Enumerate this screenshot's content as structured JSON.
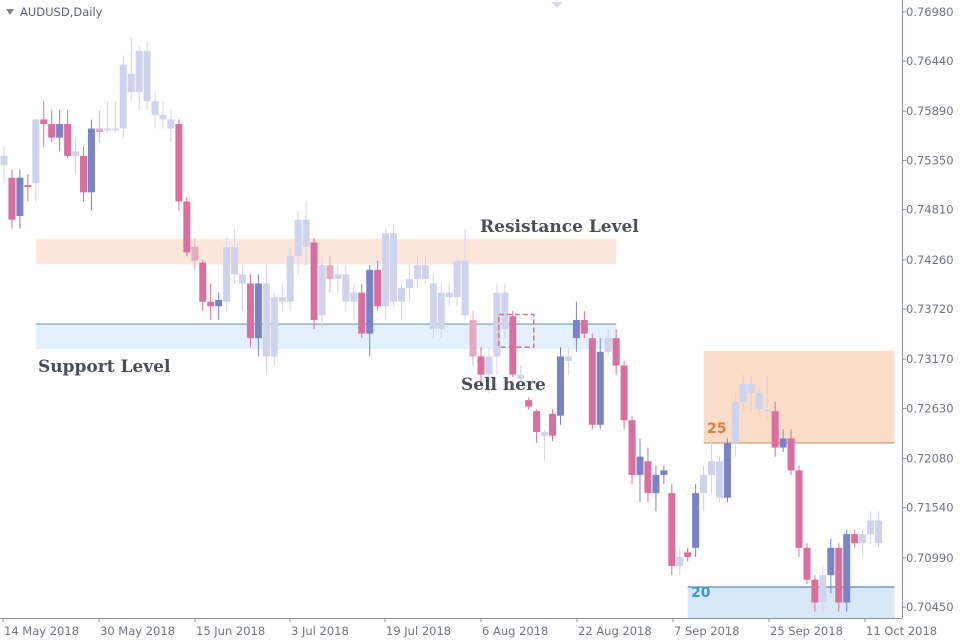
{
  "symbol_label": "AUDUSD,Daily",
  "colors": {
    "bull_muted": "#cfd3ec",
    "bull_strong": "#7b83c6",
    "bear_muted": "#e5a9c2",
    "bear_strong": "#d86f9e",
    "resistance_zone": "#fde7dc",
    "support_zone": "#e4f0fc",
    "support_line": "#8cb3d6",
    "upper_zone": "#fbdcc8",
    "upper_line": "#d28a5c",
    "lower_zone": "#d8e8f8",
    "lower_line": "#3b6fa0",
    "label_25": "#e07b3a",
    "label_20": "#3e96d3",
    "sell_box": "#e0707a"
  },
  "annotations": {
    "resistance": "Resistance Level",
    "support": "Support Level",
    "sell": "Sell here",
    "upper_level": "25",
    "lower_level": "20"
  },
  "chart_data": {
    "type": "candlestick",
    "title": "AUDUSD,Daily",
    "y_ticks": [
      "0.76980",
      "0.76440",
      "0.75890",
      "0.75350",
      "0.74810",
      "0.74260",
      "0.73720",
      "0.73170",
      "0.72630",
      "0.72080",
      "0.71540",
      "0.70990",
      "0.70450"
    ],
    "x_ticks": [
      "14 May 2018",
      "30 May 2018",
      "15 Jun 2018",
      "3 Jul 2018",
      "19 Jul 2018",
      "6 Aug 2018",
      "22 Aug 2018",
      "7 Sep 2018",
      "25 Sep 2018",
      "11 Oct 2018"
    ],
    "ylim": [
      0.7033,
      0.7711
    ],
    "zones": [
      {
        "name": "resistance",
        "from": 0.7421,
        "to": 0.7449,
        "start_index": 4,
        "end_index": 77
      },
      {
        "name": "support",
        "from": 0.7328,
        "to": 0.7356,
        "start_index": 4,
        "end_index": 77
      },
      {
        "name": "upper",
        "from": 0.7225,
        "to": 0.7326,
        "start_index": 88,
        "end_index": 112,
        "line": 0.7225
      },
      {
        "name": "lower",
        "from": 0.7033,
        "to": 0.7067,
        "start_index": 86,
        "end_index": 112,
        "line": 0.7067
      }
    ],
    "sell_marker": {
      "index": 64,
      "from": 0.733,
      "to": 0.7366
    },
    "candles": [
      {
        "o": 0.754,
        "h": 0.755,
        "l": 0.751,
        "c": 0.753,
        "t": "bull_muted"
      },
      {
        "o": 0.7516,
        "h": 0.7525,
        "l": 0.746,
        "c": 0.747,
        "t": "bear_strong"
      },
      {
        "o": 0.7474,
        "h": 0.7525,
        "l": 0.746,
        "c": 0.7516,
        "t": "bull_strong"
      },
      {
        "o": 0.7508,
        "h": 0.752,
        "l": 0.749,
        "c": 0.7506,
        "t": "bear_strong"
      },
      {
        "o": 0.751,
        "h": 0.758,
        "l": 0.749,
        "c": 0.758,
        "t": "bull_muted"
      },
      {
        "o": 0.758,
        "h": 0.76,
        "l": 0.755,
        "c": 0.7575,
        "t": "bear_strong"
      },
      {
        "o": 0.7575,
        "h": 0.759,
        "l": 0.7555,
        "c": 0.756,
        "t": "bear_strong"
      },
      {
        "o": 0.756,
        "h": 0.759,
        "l": 0.7545,
        "c": 0.7575,
        "t": "bull_strong"
      },
      {
        "o": 0.7575,
        "h": 0.759,
        "l": 0.7538,
        "c": 0.754,
        "t": "bear_strong"
      },
      {
        "o": 0.754,
        "h": 0.756,
        "l": 0.752,
        "c": 0.7545,
        "t": "bull_muted"
      },
      {
        "o": 0.754,
        "h": 0.755,
        "l": 0.749,
        "c": 0.75,
        "t": "bear_strong"
      },
      {
        "o": 0.75,
        "h": 0.758,
        "l": 0.748,
        "c": 0.757,
        "t": "bull_strong"
      },
      {
        "o": 0.7566,
        "h": 0.759,
        "l": 0.7555,
        "c": 0.757,
        "t": "bear_muted"
      },
      {
        "o": 0.757,
        "h": 0.76,
        "l": 0.7565,
        "c": 0.757,
        "t": "bull_muted"
      },
      {
        "o": 0.757,
        "h": 0.76,
        "l": 0.7565,
        "c": 0.757,
        "t": "bull_muted"
      },
      {
        "o": 0.757,
        "h": 0.765,
        "l": 0.756,
        "c": 0.764,
        "t": "bull_muted"
      },
      {
        "o": 0.763,
        "h": 0.767,
        "l": 0.76,
        "c": 0.761,
        "t": "bull_muted"
      },
      {
        "o": 0.761,
        "h": 0.766,
        "l": 0.759,
        "c": 0.7655,
        "t": "bull_muted"
      },
      {
        "o": 0.7655,
        "h": 0.7665,
        "l": 0.759,
        "c": 0.76,
        "t": "bull_muted"
      },
      {
        "o": 0.76,
        "h": 0.761,
        "l": 0.757,
        "c": 0.7585,
        "t": "bull_muted"
      },
      {
        "o": 0.7585,
        "h": 0.76,
        "l": 0.757,
        "c": 0.758,
        "t": "bull_muted"
      },
      {
        "o": 0.758,
        "h": 0.759,
        "l": 0.7555,
        "c": 0.757,
        "t": "bull_muted"
      },
      {
        "o": 0.7575,
        "h": 0.758,
        "l": 0.748,
        "c": 0.749,
        "t": "bear_strong"
      },
      {
        "o": 0.749,
        "h": 0.7495,
        "l": 0.743,
        "c": 0.7434,
        "t": "bear_strong"
      },
      {
        "o": 0.744,
        "h": 0.745,
        "l": 0.7415,
        "c": 0.7425,
        "t": "bear_muted"
      },
      {
        "o": 0.7423,
        "h": 0.7426,
        "l": 0.737,
        "c": 0.738,
        "t": "bear_strong"
      },
      {
        "o": 0.738,
        "h": 0.74,
        "l": 0.736,
        "c": 0.7375,
        "t": "bear_strong"
      },
      {
        "o": 0.7375,
        "h": 0.739,
        "l": 0.736,
        "c": 0.7382,
        "t": "bull_strong"
      },
      {
        "o": 0.738,
        "h": 0.745,
        "l": 0.737,
        "c": 0.744,
        "t": "bull_muted"
      },
      {
        "o": 0.744,
        "h": 0.746,
        "l": 0.74,
        "c": 0.741,
        "t": "bull_muted"
      },
      {
        "o": 0.741,
        "h": 0.742,
        "l": 0.737,
        "c": 0.74,
        "t": "bull_muted"
      },
      {
        "o": 0.74,
        "h": 0.741,
        "l": 0.733,
        "c": 0.734,
        "t": "bear_strong"
      },
      {
        "o": 0.734,
        "h": 0.741,
        "l": 0.732,
        "c": 0.74,
        "t": "bull_strong"
      },
      {
        "o": 0.74,
        "h": 0.742,
        "l": 0.73,
        "c": 0.732,
        "t": "bull_muted"
      },
      {
        "o": 0.732,
        "h": 0.739,
        "l": 0.731,
        "c": 0.7385,
        "t": "bull_muted"
      },
      {
        "o": 0.7385,
        "h": 0.74,
        "l": 0.737,
        "c": 0.738,
        "t": "bull_muted"
      },
      {
        "o": 0.738,
        "h": 0.744,
        "l": 0.737,
        "c": 0.743,
        "t": "bull_muted"
      },
      {
        "o": 0.743,
        "h": 0.748,
        "l": 0.741,
        "c": 0.747,
        "t": "bull_muted"
      },
      {
        "o": 0.747,
        "h": 0.749,
        "l": 0.742,
        "c": 0.744,
        "t": "bull_muted"
      },
      {
        "o": 0.7445,
        "h": 0.745,
        "l": 0.735,
        "c": 0.736,
        "t": "bear_strong"
      },
      {
        "o": 0.7365,
        "h": 0.743,
        "l": 0.735,
        "c": 0.742,
        "t": "bull_muted"
      },
      {
        "o": 0.742,
        "h": 0.743,
        "l": 0.739,
        "c": 0.7405,
        "t": "bear_muted"
      },
      {
        "o": 0.7405,
        "h": 0.742,
        "l": 0.739,
        "c": 0.741,
        "t": "bull_muted"
      },
      {
        "o": 0.741,
        "h": 0.742,
        "l": 0.737,
        "c": 0.738,
        "t": "bull_muted"
      },
      {
        "o": 0.738,
        "h": 0.74,
        "l": 0.736,
        "c": 0.739,
        "t": "bull_muted"
      },
      {
        "o": 0.739,
        "h": 0.74,
        "l": 0.734,
        "c": 0.7345,
        "t": "bear_strong"
      },
      {
        "o": 0.7345,
        "h": 0.742,
        "l": 0.732,
        "c": 0.7415,
        "t": "bull_strong"
      },
      {
        "o": 0.7415,
        "h": 0.7425,
        "l": 0.737,
        "c": 0.7375,
        "t": "bear_strong"
      },
      {
        "o": 0.7375,
        "h": 0.746,
        "l": 0.736,
        "c": 0.7455,
        "t": "bull_muted"
      },
      {
        "o": 0.7455,
        "h": 0.7465,
        "l": 0.7375,
        "c": 0.738,
        "t": "bull_muted"
      },
      {
        "o": 0.738,
        "h": 0.74,
        "l": 0.736,
        "c": 0.7395,
        "t": "bull_muted"
      },
      {
        "o": 0.7395,
        "h": 0.742,
        "l": 0.738,
        "c": 0.7405,
        "t": "bull_muted"
      },
      {
        "o": 0.7405,
        "h": 0.743,
        "l": 0.7395,
        "c": 0.742,
        "t": "bull_muted"
      },
      {
        "o": 0.742,
        "h": 0.743,
        "l": 0.74,
        "c": 0.7405,
        "t": "bull_muted"
      },
      {
        "o": 0.74,
        "h": 0.741,
        "l": 0.734,
        "c": 0.735,
        "t": "bull_muted"
      },
      {
        "o": 0.735,
        "h": 0.74,
        "l": 0.734,
        "c": 0.739,
        "t": "bull_muted"
      },
      {
        "o": 0.739,
        "h": 0.74,
        "l": 0.7375,
        "c": 0.7385,
        "t": "bull_muted"
      },
      {
        "o": 0.7385,
        "h": 0.743,
        "l": 0.7375,
        "c": 0.7425,
        "t": "bull_muted"
      },
      {
        "o": 0.7425,
        "h": 0.746,
        "l": 0.736,
        "c": 0.7365,
        "t": "bull_muted"
      },
      {
        "o": 0.736,
        "h": 0.737,
        "l": 0.731,
        "c": 0.732,
        "t": "bear_muted"
      },
      {
        "o": 0.732,
        "h": 0.733,
        "l": 0.729,
        "c": 0.73,
        "t": "bear_strong"
      },
      {
        "o": 0.73,
        "h": 0.733,
        "l": 0.728,
        "c": 0.732,
        "t": "bull_muted"
      },
      {
        "o": 0.732,
        "h": 0.74,
        "l": 0.73,
        "c": 0.739,
        "t": "bull_muted"
      },
      {
        "o": 0.739,
        "h": 0.74,
        "l": 0.734,
        "c": 0.735,
        "t": "bull_muted"
      },
      {
        "o": 0.7364,
        "h": 0.737,
        "l": 0.7297,
        "c": 0.73,
        "t": "bear_strong"
      },
      {
        "o": 0.73,
        "h": 0.731,
        "l": 0.729,
        "c": 0.7295,
        "t": "bull_muted"
      },
      {
        "o": 0.7272,
        "h": 0.7275,
        "l": 0.7262,
        "c": 0.7265,
        "t": "bear_strong"
      },
      {
        "o": 0.726,
        "h": 0.7262,
        "l": 0.7225,
        "c": 0.7237,
        "t": "bear_strong"
      },
      {
        "o": 0.7237,
        "h": 0.724,
        "l": 0.7205,
        "c": 0.7233,
        "t": "bull_muted"
      },
      {
        "o": 0.7257,
        "h": 0.7262,
        "l": 0.7227,
        "c": 0.7233,
        "t": "bear_strong"
      },
      {
        "o": 0.7255,
        "h": 0.733,
        "l": 0.7245,
        "c": 0.732,
        "t": "bull_strong"
      },
      {
        "o": 0.732,
        "h": 0.733,
        "l": 0.73,
        "c": 0.7315,
        "t": "bull_muted"
      },
      {
        "o": 0.734,
        "h": 0.738,
        "l": 0.7325,
        "c": 0.736,
        "t": "bull_strong"
      },
      {
        "o": 0.736,
        "h": 0.737,
        "l": 0.734,
        "c": 0.7345,
        "t": "bear_strong"
      },
      {
        "o": 0.734,
        "h": 0.7345,
        "l": 0.724,
        "c": 0.7245,
        "t": "bear_strong"
      },
      {
        "o": 0.7245,
        "h": 0.734,
        "l": 0.724,
        "c": 0.7325,
        "t": "bull_strong"
      },
      {
        "o": 0.7325,
        "h": 0.735,
        "l": 0.732,
        "c": 0.734,
        "t": "bull_muted"
      },
      {
        "o": 0.734,
        "h": 0.735,
        "l": 0.73,
        "c": 0.731,
        "t": "bear_strong"
      },
      {
        "o": 0.731,
        "h": 0.7315,
        "l": 0.724,
        "c": 0.725,
        "t": "bear_strong"
      },
      {
        "o": 0.725,
        "h": 0.7255,
        "l": 0.718,
        "c": 0.719,
        "t": "bear_strong"
      },
      {
        "o": 0.719,
        "h": 0.723,
        "l": 0.716,
        "c": 0.721,
        "t": "bull_strong"
      },
      {
        "o": 0.7205,
        "h": 0.722,
        "l": 0.716,
        "c": 0.717,
        "t": "bear_strong"
      },
      {
        "o": 0.717,
        "h": 0.72,
        "l": 0.715,
        "c": 0.719,
        "t": "bull_strong"
      },
      {
        "o": 0.719,
        "h": 0.72,
        "l": 0.718,
        "c": 0.7195,
        "t": "bull_strong"
      },
      {
        "o": 0.717,
        "h": 0.718,
        "l": 0.708,
        "c": 0.709,
        "t": "bear_strong"
      },
      {
        "o": 0.709,
        "h": 0.711,
        "l": 0.708,
        "c": 0.71,
        "t": "bull_muted"
      },
      {
        "o": 0.7105,
        "h": 0.711,
        "l": 0.7095,
        "c": 0.71,
        "t": "bear_strong"
      },
      {
        "o": 0.711,
        "h": 0.718,
        "l": 0.71,
        "c": 0.717,
        "t": "bull_strong"
      },
      {
        "o": 0.717,
        "h": 0.72,
        "l": 0.715,
        "c": 0.719,
        "t": "bull_muted"
      },
      {
        "o": 0.719,
        "h": 0.723,
        "l": 0.717,
        "c": 0.7205,
        "t": "bull_muted"
      },
      {
        "o": 0.7205,
        "h": 0.721,
        "l": 0.716,
        "c": 0.7165,
        "t": "bull_muted"
      },
      {
        "o": 0.7165,
        "h": 0.723,
        "l": 0.716,
        "c": 0.7225,
        "t": "bull_strong"
      },
      {
        "o": 0.7225,
        "h": 0.728,
        "l": 0.721,
        "c": 0.727,
        "t": "bull_muted"
      },
      {
        "o": 0.727,
        "h": 0.73,
        "l": 0.726,
        "c": 0.729,
        "t": "bull_muted"
      },
      {
        "o": 0.729,
        "h": 0.73,
        "l": 0.726,
        "c": 0.728,
        "t": "bull_muted"
      },
      {
        "o": 0.728,
        "h": 0.7285,
        "l": 0.7255,
        "c": 0.7262,
        "t": "bull_muted"
      },
      {
        "o": 0.7262,
        "h": 0.73,
        "l": 0.725,
        "c": 0.726,
        "t": "bull_muted"
      },
      {
        "o": 0.726,
        "h": 0.727,
        "l": 0.721,
        "c": 0.722,
        "t": "bear_strong"
      },
      {
        "o": 0.722,
        "h": 0.724,
        "l": 0.7215,
        "c": 0.723,
        "t": "bull_strong"
      },
      {
        "o": 0.723,
        "h": 0.724,
        "l": 0.719,
        "c": 0.7195,
        "t": "bear_strong"
      },
      {
        "o": 0.7195,
        "h": 0.72,
        "l": 0.71,
        "c": 0.711,
        "t": "bear_strong"
      },
      {
        "o": 0.711,
        "h": 0.7115,
        "l": 0.707,
        "c": 0.7075,
        "t": "bear_strong"
      },
      {
        "o": 0.7075,
        "h": 0.708,
        "l": 0.704,
        "c": 0.705,
        "t": "bear_strong"
      },
      {
        "o": 0.705,
        "h": 0.709,
        "l": 0.704,
        "c": 0.708,
        "t": "bull_muted"
      },
      {
        "o": 0.708,
        "h": 0.712,
        "l": 0.706,
        "c": 0.711,
        "t": "bull_strong"
      },
      {
        "o": 0.711,
        "h": 0.7115,
        "l": 0.704,
        "c": 0.705,
        "t": "bear_strong"
      },
      {
        "o": 0.705,
        "h": 0.713,
        "l": 0.704,
        "c": 0.7125,
        "t": "bull_strong"
      },
      {
        "o": 0.7125,
        "h": 0.713,
        "l": 0.711,
        "c": 0.7115,
        "t": "bear_strong"
      },
      {
        "o": 0.7115,
        "h": 0.713,
        "l": 0.71,
        "c": 0.7125,
        "t": "bull_muted"
      },
      {
        "o": 0.7125,
        "h": 0.715,
        "l": 0.7115,
        "c": 0.714,
        "t": "bull_muted"
      },
      {
        "o": 0.714,
        "h": 0.715,
        "l": 0.711,
        "c": 0.7115,
        "t": "bull_muted"
      }
    ]
  }
}
